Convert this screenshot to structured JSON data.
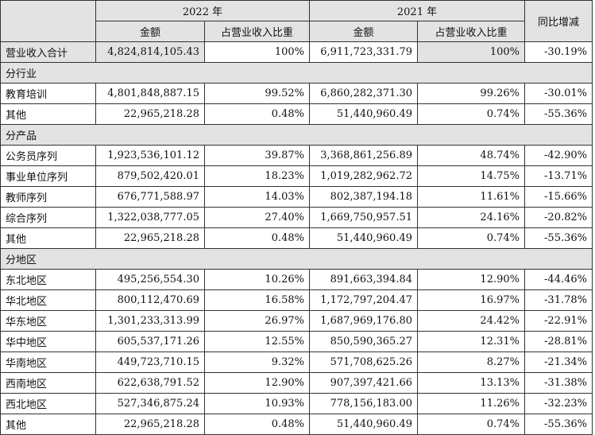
{
  "table": {
    "header": {
      "years": [
        "2022 年",
        "2021 年"
      ],
      "change": "同比增减",
      "columns": [
        "金额",
        "占营业收入比重",
        "金额",
        "占营业收入比重"
      ]
    },
    "rows": [
      [
        "营业收入合计",
        "4,824,814,105.43",
        "100%",
        "6,911,723,331.79",
        "100%",
        "-30.19%"
      ],
      [
        "分行业"
      ],
      [
        "教育培训",
        "4,801,848,887.15",
        "99.52%",
        "6,860,282,371.30",
        "99.26%",
        "-30.01%"
      ],
      [
        "其他",
        "22,965,218.28",
        "0.48%",
        "51,440,960.49",
        "0.74%",
        "-55.36%"
      ],
      [
        "分产品"
      ],
      [
        "公务员序列",
        "1,923,536,101.12",
        "39.87%",
        "3,368,861,256.89",
        "48.74%",
        "-42.90%"
      ],
      [
        "事业单位序列",
        "879,502,420.01",
        "18.23%",
        "1,019,282,962.72",
        "14.75%",
        "-13.71%"
      ],
      [
        "教师序列",
        "676,771,588.97",
        "14.03%",
        "802,387,194.18",
        "11.61%",
        "-15.66%"
      ],
      [
        "综合序列",
        "1,322,038,777.05",
        "27.40%",
        "1,669,750,957.51",
        "24.16%",
        "-20.82%"
      ],
      [
        "其他",
        "22,965,218.28",
        "0.48%",
        "51,440,960.49",
        "0.74%",
        "-55.36%"
      ],
      [
        "分地区"
      ],
      [
        "东北地区",
        "495,256,554.30",
        "10.26%",
        "891,663,394.84",
        "12.90%",
        "-44.46%"
      ],
      [
        "华北地区",
        "800,112,470.69",
        "16.58%",
        "1,172,797,204.47",
        "16.97%",
        "-31.78%"
      ],
      [
        "华东地区",
        "1,301,233,313.99",
        "26.97%",
        "1,687,969,176.80",
        "24.42%",
        "-22.91%"
      ],
      [
        "华中地区",
        "605,537,171.26",
        "12.55%",
        "850,590,365.27",
        "12.31%",
        "-28.81%"
      ],
      [
        "华南地区",
        "449,723,710.15",
        "9.32%",
        "571,708,625.26",
        "8.27%",
        "-21.34%"
      ],
      [
        "西南地区",
        "622,638,791.52",
        "12.90%",
        "907,397,421.66",
        "13.13%",
        "-31.38%"
      ],
      [
        "西北地区",
        "527,346,875.24",
        "10.93%",
        "778,156,183.00",
        "11.26%",
        "-32.23%"
      ],
      [
        "其他",
        "22,965,218.28",
        "0.48%",
        "51,440,960.49",
        "0.74%",
        "-55.36%"
      ]
    ]
  }
}
